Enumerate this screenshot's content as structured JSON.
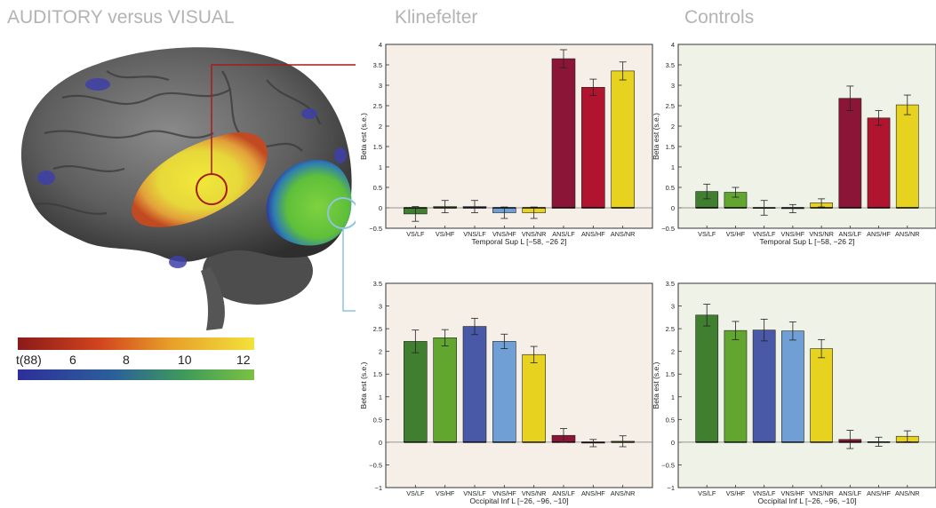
{
  "headings": {
    "left": "AUDITORY versus VISUAL",
    "middle": "Klinefelter",
    "right": "Controls"
  },
  "colorbar": {
    "stat_label": "t(88)",
    "ticks": [
      "6",
      "8",
      "10",
      "12"
    ],
    "top_gradient": [
      "#8b1a1a",
      "#d2451e",
      "#e8a02a",
      "#f2e23a"
    ],
    "bottom_gradient": [
      "#2d2f9a",
      "#2b5f9a",
      "#3e9a5a",
      "#7ac143"
    ]
  },
  "colors": {
    "VS/LF": "#3f7f2f",
    "VS/HF": "#62a52f",
    "VNS/LF": "#4a58a8",
    "VNS/HF": "#6f9fd4",
    "VNS/NR": "#e6d21f",
    "ANS/LF": "#8b1537",
    "ANS/HF": "#b0142f",
    "ANS/NR": "#e6d21f",
    "klinefelter_bg": "#f5efe8",
    "controls_bg": "#eff2e6",
    "auditory_marker": "#a51c1c",
    "visual_marker": "#8fc3e0"
  },
  "chart_data": [
    {
      "id": "klinefelter-temporal",
      "type": "bar",
      "group": "Klinefelter",
      "categories": [
        "VS/LF",
        "VS/HF",
        "VNS/LF",
        "VNS/HF",
        "VNS/NR",
        "ANS/LF",
        "ANS/HF",
        "ANS/NR"
      ],
      "values": [
        -0.15,
        0.03,
        0.03,
        -0.12,
        -0.12,
        3.65,
        2.95,
        3.35
      ],
      "errors": [
        0.18,
        0.15,
        0.15,
        0.14,
        0.14,
        0.22,
        0.2,
        0.22
      ],
      "xlabel": "Temporal Sup L [−58, −26 2]",
      "ylabel": "Beta est (s.e.)",
      "ylim": [
        -0.5,
        4
      ],
      "yticks": [
        "−0.5",
        "0",
        "0.5",
        "1",
        "1.5",
        "2",
        "2.5",
        "3",
        "3.5",
        "4"
      ],
      "ytick_values": [
        -0.5,
        0,
        0.5,
        1,
        1.5,
        2,
        2.5,
        3,
        3.5,
        4
      ]
    },
    {
      "id": "controls-temporal",
      "type": "bar",
      "group": "Controls",
      "categories": [
        "VS/LF",
        "VS/HF",
        "VNS/LF",
        "VNS/HF",
        "VNS/NR",
        "ANS/LF",
        "ANS/HF",
        "ANS/NR"
      ],
      "values": [
        0.4,
        0.38,
        0.0,
        -0.02,
        0.12,
        2.68,
        2.2,
        2.52
      ],
      "errors": [
        0.18,
        0.12,
        0.18,
        0.1,
        0.1,
        0.3,
        0.18,
        0.24
      ],
      "xlabel": "Temporal Sup L [−58, −26 2]",
      "ylabel": "Beta est (s.e.)",
      "ylim": [
        -0.5,
        4
      ],
      "yticks": [
        "−0.5",
        "0",
        "0.5",
        "1",
        "1.5",
        "2",
        "2.5",
        "3",
        "3.5",
        "4"
      ],
      "ytick_values": [
        -0.5,
        0,
        0.5,
        1,
        1.5,
        2,
        2.5,
        3,
        3.5,
        4
      ]
    },
    {
      "id": "klinefelter-occipital",
      "type": "bar",
      "group": "Klinefelter",
      "categories": [
        "VS/LF",
        "VS/HF",
        "VNS/LF",
        "VNS/HF",
        "VNS/NR",
        "ANS/LF",
        "ANS/HF",
        "ANS/NR"
      ],
      "values": [
        2.22,
        2.3,
        2.55,
        2.22,
        1.93,
        0.15,
        -0.02,
        0.02
      ],
      "errors": [
        0.25,
        0.18,
        0.18,
        0.16,
        0.18,
        0.15,
        0.08,
        0.12
      ],
      "xlabel": "Occipital Inf L [−26, −96, −10]",
      "ylabel": "Beta est (s.e.)",
      "ylim": [
        -1,
        3.5
      ],
      "yticks": [
        "−1",
        "−0.5",
        "0",
        "0.5",
        "1",
        "1.5",
        "2",
        "2.5",
        "3",
        "3.5"
      ],
      "ytick_values": [
        -1,
        -0.5,
        0,
        0.5,
        1,
        1.5,
        2,
        2.5,
        3,
        3.5
      ]
    },
    {
      "id": "controls-occipital",
      "type": "bar",
      "group": "Controls",
      "categories": [
        "VS/LF",
        "VS/HF",
        "VNS/LF",
        "VNS/HF",
        "VNS/NR",
        "ANS/LF",
        "ANS/HF",
        "ANS/NR"
      ],
      "values": [
        2.8,
        2.46,
        2.47,
        2.45,
        2.06,
        0.06,
        0.01,
        0.13
      ],
      "errors": [
        0.24,
        0.2,
        0.24,
        0.2,
        0.2,
        0.2,
        0.1,
        0.12
      ],
      "xlabel": "Occipital Inf L [−26, −96, −10]",
      "ylabel": "Beta est (s.e.)",
      "ylim": [
        -1,
        3.5
      ],
      "yticks": [
        "−1",
        "−0.5",
        "0",
        "0.5",
        "1",
        "1.5",
        "2",
        "2.5",
        "3",
        "3.5"
      ],
      "ytick_values": [
        -1,
        -0.5,
        0,
        0.5,
        1,
        1.5,
        2,
        2.5,
        3,
        3.5
      ]
    }
  ]
}
